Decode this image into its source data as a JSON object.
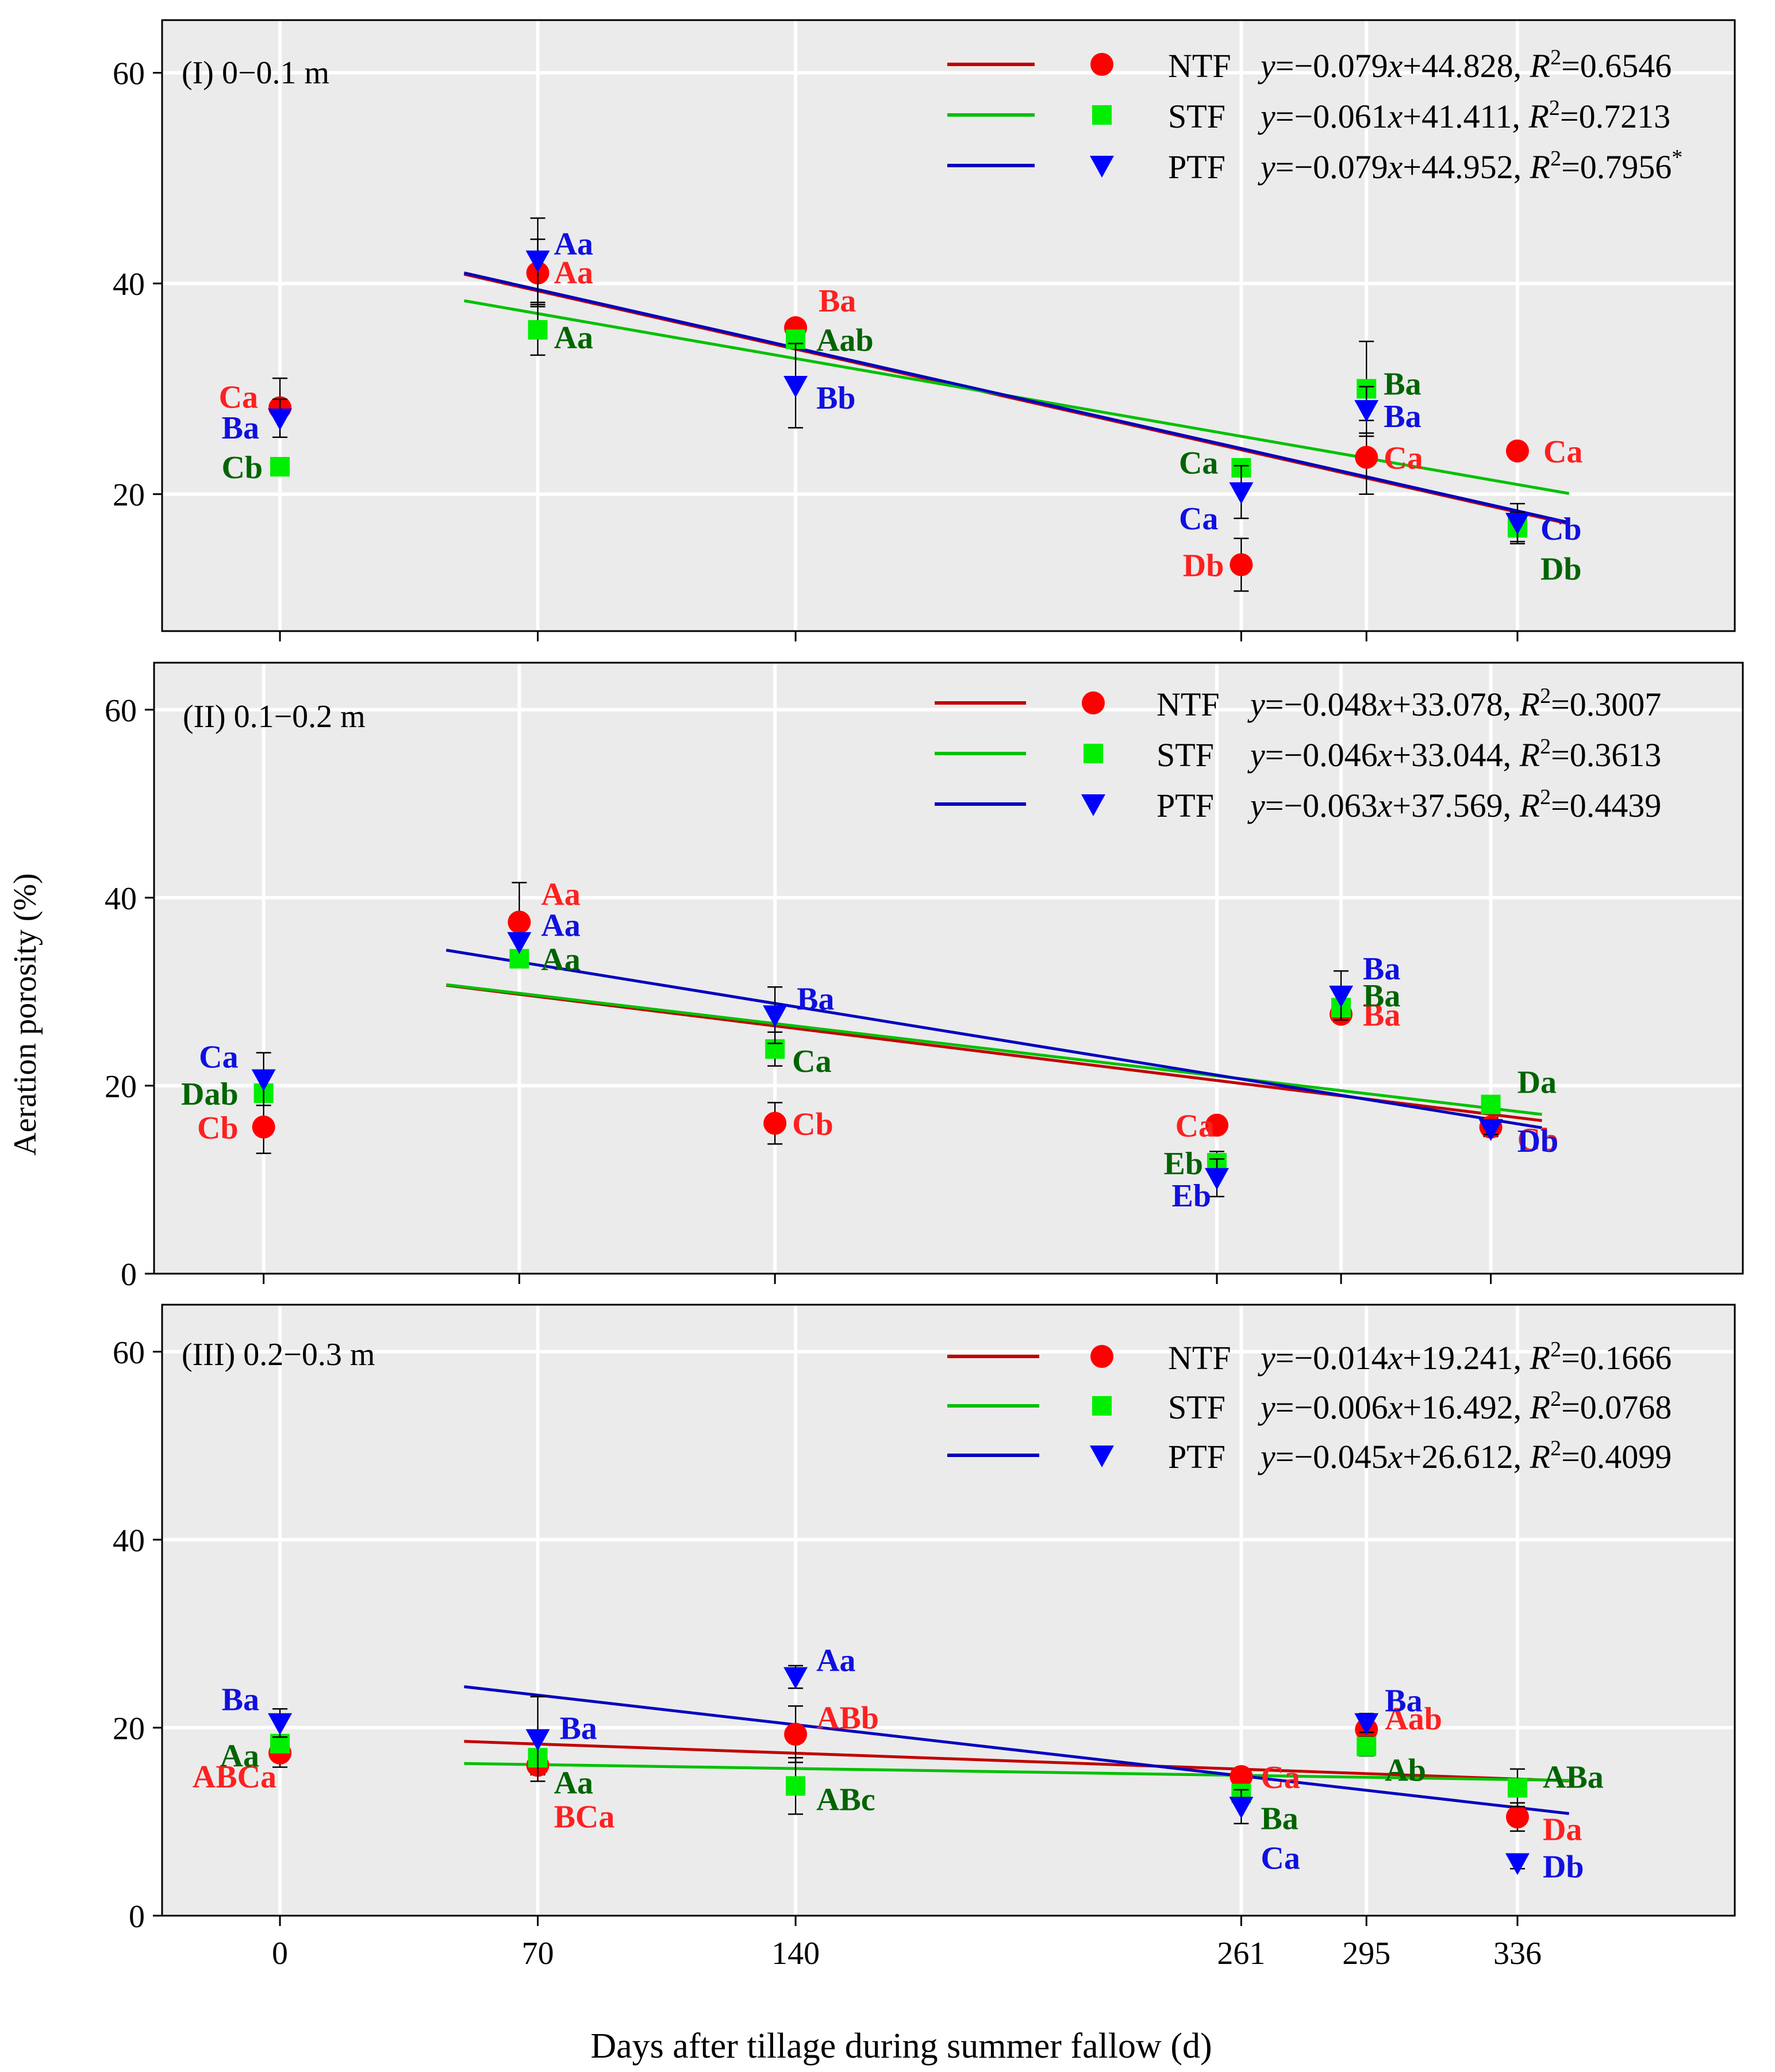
{
  "figure": {
    "ylabel": "Aeration porosity (%)",
    "xlabel": "Days after tillage during summer fallow (d)",
    "x_ticks": [
      0,
      70,
      140,
      261,
      295,
      336
    ],
    "y_ticks": [
      0,
      20,
      40,
      60
    ]
  },
  "colors": {
    "NTF_line": "#c00000",
    "NTF_marker": "#ff0000",
    "STF_line": "#00c000",
    "STF_marker": "#00ee00",
    "PTF_line": "#0000c0",
    "PTF_marker": "#0000ff",
    "NTF_label": "#ff2020",
    "STF_label": "#006400",
    "PTF_label": "#1010e0",
    "panel_bg": "#ebebeb"
  },
  "chart_data": [
    {
      "type": "scatter",
      "title": "(I) 0−0.1 m",
      "ylim": [
        7,
        65
      ],
      "xlim": [
        -32,
        395
      ],
      "series": [
        {
          "name": "NTF",
          "x": [
            0,
            70,
            140,
            261,
            295,
            336
          ],
          "values": [
            28.2,
            41.0,
            35.8,
            13.3,
            23.5,
            24.1
          ],
          "err": [
            2.8,
            3.2,
            0.5,
            2.5,
            3.5,
            0
          ],
          "labels": [
            "Ca",
            "Aa",
            "Ba",
            "Db",
            "Ca",
            "Ca"
          ],
          "equation": "y=−0.079x+44.828, R²=0.6546",
          "fit_x": [
            50,
            350
          ]
        },
        {
          "name": "STF",
          "x": [
            0,
            70,
            140,
            261,
            295,
            336
          ],
          "values": [
            22.6,
            35.6,
            34.7,
            22.5,
            30.0,
            16.8
          ],
          "err": [
            0,
            2.4,
            0,
            0,
            4.5,
            1.5
          ],
          "labels": [
            "Cb",
            "Aa",
            "Aab",
            "Ca",
            "Ba",
            "Db"
          ],
          "equation": "y=−0.061x+41.411, R²=0.7213",
          "fit_x": [
            50,
            350
          ]
        },
        {
          "name": "PTF",
          "x": [
            0,
            70,
            140,
            261,
            295,
            336
          ],
          "values": [
            27.2,
            42.2,
            30.3,
            20.2,
            28.0,
            17.3
          ],
          "err": [
            1.8,
            4.0,
            4.0,
            2.5,
            2.2,
            1.8
          ],
          "labels": [
            "Ba",
            "Aa",
            "Bb",
            "Ca",
            "Ba",
            "Cb"
          ],
          "equation": "y=−0.079x+44.952, R²=0.7956*",
          "fit_x": [
            50,
            350
          ]
        }
      ]
    },
    {
      "type": "scatter",
      "title": "(II) 0.1−0.2 m",
      "ylim": [
        0,
        65
      ],
      "xlim": [
        -30,
        405
      ],
      "series": [
        {
          "name": "NTF",
          "x": [
            0,
            70,
            140,
            261,
            295,
            336
          ],
          "values": [
            15.6,
            37.4,
            16.0,
            15.8,
            27.6,
            15.6
          ],
          "err": [
            2.8,
            4.2,
            2.2,
            0,
            0.6,
            1.0
          ],
          "labels": [
            "Cb",
            "Aa",
            "Cb",
            "Ca",
            "Ba",
            "Cb"
          ],
          "equation": "y=−0.048x+33.078, R²=0.3007",
          "fit_x": [
            50,
            350
          ]
        },
        {
          "name": "STF",
          "x": [
            0,
            70,
            140,
            261,
            295,
            336
          ],
          "values": [
            19.2,
            33.5,
            23.9,
            11.8,
            28.3,
            18.0
          ],
          "err": [
            0,
            0,
            1.8,
            1.2,
            0,
            0
          ],
          "labels": [
            "Dab",
            "Aa",
            "Ca",
            "Eb",
            "Ba",
            "Da"
          ],
          "equation": "y=−0.046x+33.044, R²=0.3613",
          "fit_x": [
            50,
            350
          ]
        },
        {
          "name": "PTF",
          "x": [
            0,
            70,
            140,
            261,
            295,
            336
          ],
          "values": [
            20.7,
            35.3,
            27.5,
            10.2,
            29.6,
            15.4
          ],
          "err": [
            2.8,
            0,
            3.0,
            2.0,
            2.6,
            0.6
          ],
          "labels": [
            "Ca",
            "Aa",
            "Ba",
            "Eb",
            "Ba",
            "Db"
          ],
          "equation": "y=−0.063x+37.569, R²=0.4439",
          "fit_x": [
            50,
            350
          ]
        }
      ]
    },
    {
      "type": "scatter",
      "title": "(III) 0.2−0.3 m",
      "ylim": [
        0,
        65
      ],
      "xlim": [
        -32,
        395
      ],
      "series": [
        {
          "name": "NTF",
          "x": [
            0,
            70,
            140,
            261,
            295,
            336
          ],
          "values": [
            17.3,
            16.0,
            19.3,
            14.8,
            19.8,
            10.5
          ],
          "err": [
            1.5,
            1.0,
            3.0,
            0,
            1.2,
            1.5
          ],
          "labels": [
            "ABCa",
            "BCa",
            "ABb",
            "Ca",
            "Aab",
            "Da"
          ],
          "equation": "y=−0.014x+19.241, R²=0.1666",
          "fit_x": [
            50,
            350
          ]
        },
        {
          "name": "STF",
          "x": [
            0,
            70,
            140,
            261,
            295,
            336
          ],
          "values": [
            18.3,
            16.8,
            13.8,
            13.0,
            18.0,
            13.6
          ],
          "err": [
            0,
            0,
            3.0,
            0,
            1.0,
            2.0
          ],
          "labels": [
            "Aa",
            "Aa",
            "ABc",
            "Ba",
            "Ab",
            "ABa"
          ],
          "equation": "y=−0.006x+16.492, R²=0.0768",
          "fit_x": [
            50,
            350
          ]
        },
        {
          "name": "PTF",
          "x": [
            0,
            70,
            140,
            261,
            295,
            336
          ],
          "values": [
            20.5,
            18.8,
            25.4,
            11.6,
            20.5,
            5.6
          ],
          "err": [
            1.5,
            4.5,
            1.2,
            1.8,
            1.0,
            0.6
          ],
          "labels": [
            "Ba",
            "Ba",
            "Aa",
            "Ca",
            "Ba",
            "Db"
          ],
          "equation": "y=−0.045x+26.612, R²=0.4099",
          "fit_x": [
            50,
            350
          ]
        }
      ]
    }
  ]
}
